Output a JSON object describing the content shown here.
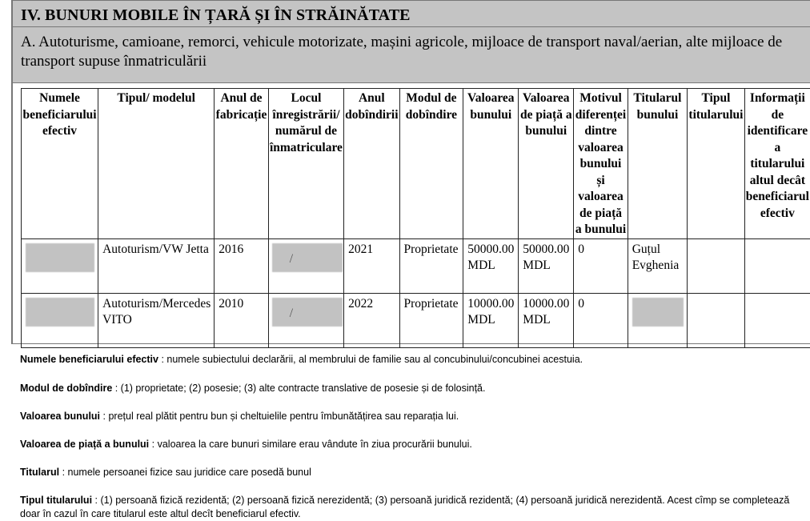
{
  "section_title": "IV. BUNURI MOBILE ÎN ȚARĂ ȘI ÎN STRĂINĂTATE",
  "subsection_title": "A. Autoturisme, camioane, remorci, vehicule motorizate, mașini agricole, mijloace de transport naval/aerian, alte mijloace de transport supuse înmatriculării",
  "table": {
    "headers": [
      "Numele beneficiarului efectiv",
      "Tipul/ modelul",
      "Anul de fabricație",
      "Locul înregistrării/ numărul de înmatriculare",
      "Anul dobîndirii",
      "Modul de dobîndire",
      "Valoarea bunului",
      "Valoarea de piață a bunului",
      "Motivul diferenței dintre valoarea bunului și valoarea de piață a bunului",
      "Titularul bunului",
      "Tipul titularului",
      "Informații de identificare a titularului altul decât beneficiarul efectiv"
    ],
    "rows": [
      {
        "beneficiary": "",
        "model": "Autoturism/VW Jetta",
        "year_made": "2016",
        "registration": "/",
        "year_acquired": "2021",
        "acquisition_mode": "Proprietate",
        "value": "50000.00 MDL",
        "market_value": "50000.00 MDL",
        "difference_reason": "0",
        "holder": "Guțul Evghenia",
        "holder_type": "",
        "holder_info": ""
      },
      {
        "beneficiary": "",
        "model": "Autoturism/Mercedes VITO",
        "year_made": "2010",
        "registration": "/",
        "year_acquired": "2022",
        "acquisition_mode": "Proprietate",
        "value": "10000.00 MDL",
        "market_value": "10000.00 MDL",
        "difference_reason": "0",
        "holder": "",
        "holder_type": "",
        "holder_info": ""
      }
    ]
  },
  "legend": [
    {
      "term": "Numele beneficiarului efectiv",
      "text": " : numele subiectului declarării, al membrului de familie sau al concubinului/concubinei acestuia."
    },
    {
      "term": "Modul de dobîndire",
      "text": " : (1) proprietate; (2) posesie; (3) alte contracte translative de posesie și de folosință."
    },
    {
      "term": "Valoarea bunului",
      "text": " : prețul real plătit pentru bun și cheltuielile pentru îmbunătățirea sau reparația lui."
    },
    {
      "term": "Valoarea de piață a bunului",
      "text": " : valoarea la care bunuri similare erau vândute în ziua procurării bunului."
    },
    {
      "term": "Titularul",
      "text": " : numele persoanei fizice sau juridice care posedă bunul"
    },
    {
      "term": "Tipul titularului",
      "text": " : (1) persoană fizică rezidentă; (2) persoană fizică nerezidentă; (3) persoană juridică rezidentă; (4) persoană juridică nerezidentă. Acest cîmp se completează doar în cazul în care titularul este altul decît beneficiarul efectiv."
    }
  ]
}
